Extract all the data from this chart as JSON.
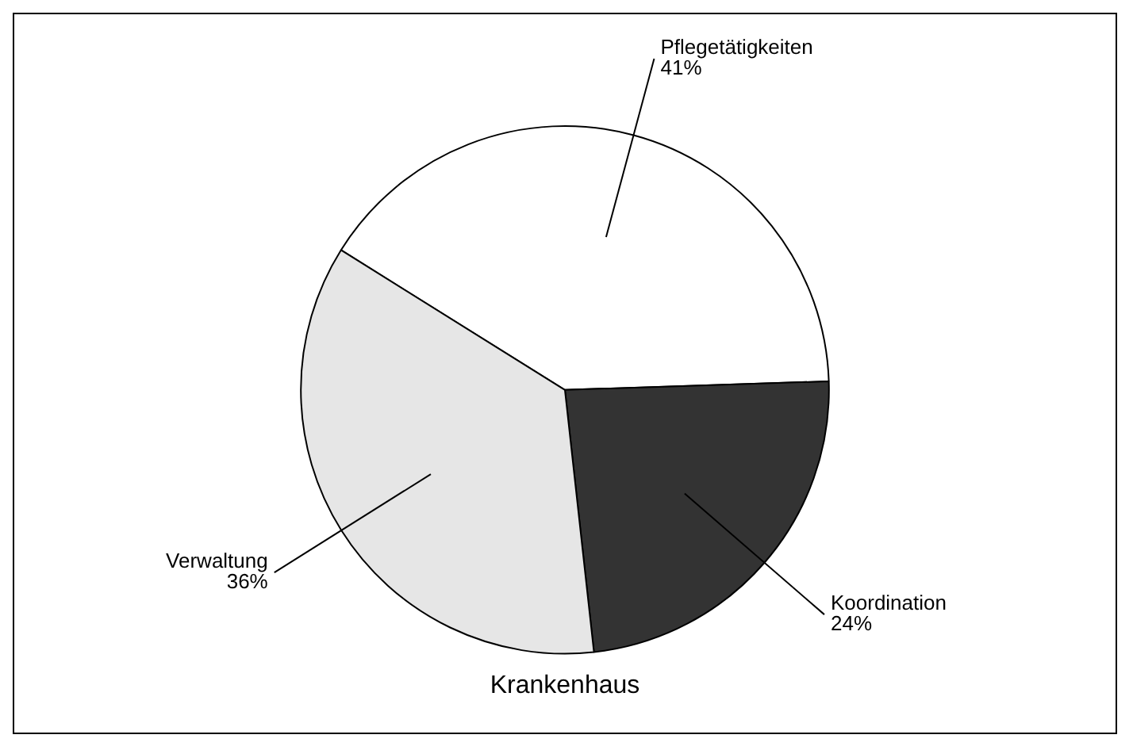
{
  "chart_data": {
    "type": "pie",
    "title": "Krankenhaus",
    "categories": [
      "Pflegetätigkeiten",
      "Koordination",
      "Verwaltung"
    ],
    "values": [
      41,
      24,
      36
    ],
    "value_labels": [
      "41%",
      "24%",
      "36%"
    ],
    "colors": [
      "#ffffff",
      "#333333",
      "#e6e6e6"
    ],
    "legend": false
  }
}
